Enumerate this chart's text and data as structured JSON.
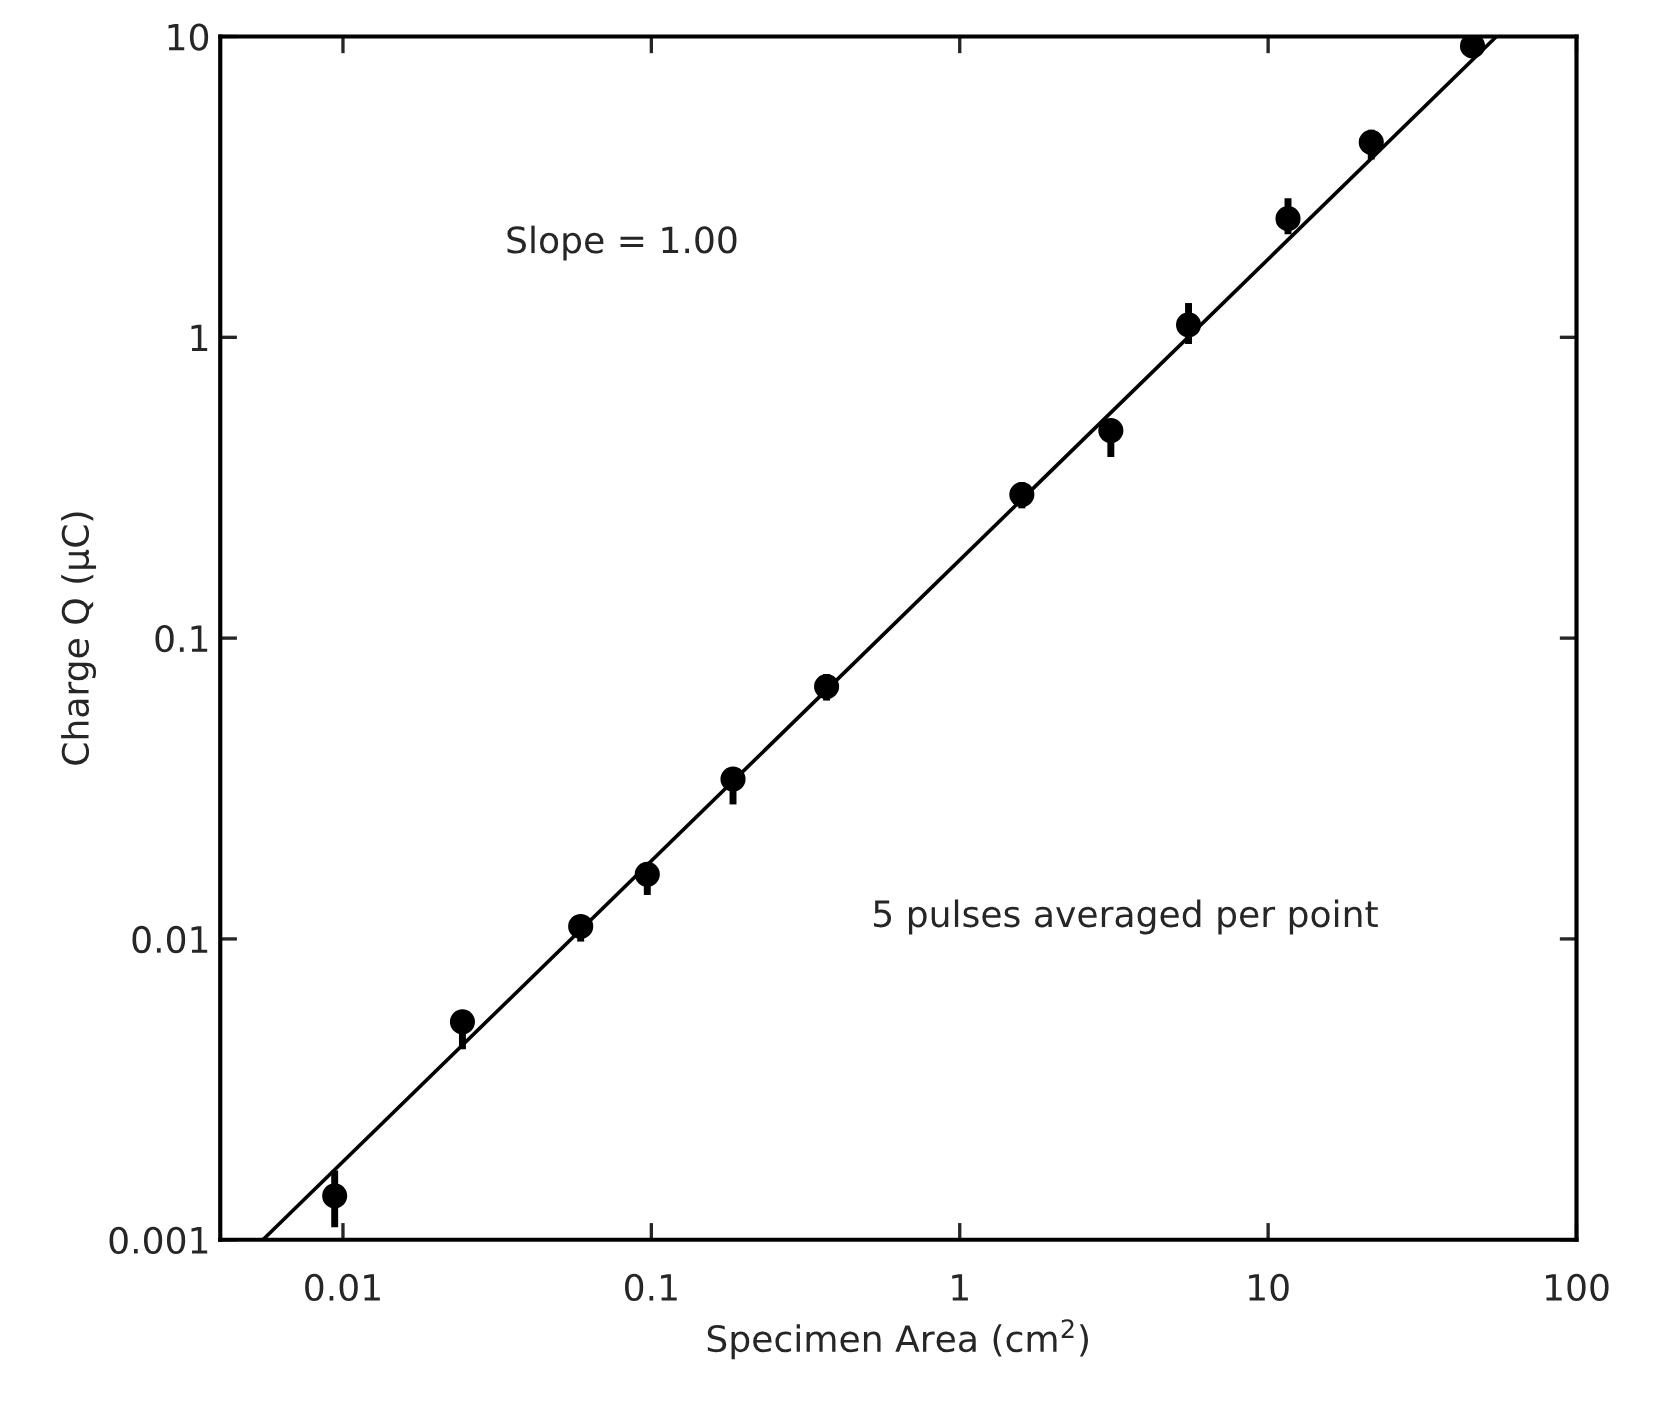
{
  "chart_data": {
    "type": "scatter",
    "xlabel": "Specimen Area (cm$^{2}$)",
    "ylabel": "Charge Q (μC)",
    "log": "xy",
    "grid": false,
    "legend": false,
    "marker": "circle",
    "xlim": [
      0.004,
      100
    ],
    "xticks": [
      0.01,
      0.1,
      1,
      10,
      100
    ],
    "ylim": [
      0.001,
      10
    ],
    "yticks": [
      0.001,
      0.01,
      0.1,
      1,
      10
    ],
    "annotations": [
      "Slope = 1.00",
      "5 pulses averaged per point"
    ],
    "series": [
      {
        "color": "#000000",
        "x": [
          0.0094,
          0.0244,
          0.059,
          0.097,
          0.184,
          0.37,
          1.59,
          3.09,
          5.52,
          11.6,
          21.6,
          46
        ],
        "values": [
          0.0014,
          0.0053,
          0.011,
          0.0164,
          0.034,
          0.069,
          0.3,
          0.49,
          1.1,
          2.48,
          4.45,
          9.3
        ],
        "errors": [
          [
            0.0011,
            0.0017
          ],
          [
            0.0043,
            0.0058
          ],
          [
            0.0098,
            0.012
          ],
          [
            0.014,
            0.018
          ],
          [
            0.028,
            0.037
          ],
          [
            0.062,
            0.076
          ],
          [
            0.27,
            0.33
          ],
          [
            0.4,
            0.53
          ],
          [
            0.95,
            1.3
          ],
          [
            2.2,
            2.9
          ],
          [
            3.9,
            4.9
          ],
          [
            8.5,
            10
          ]
        ]
      },
      {
        "type": "line",
        "color": "#000000",
        "line_style": "solid",
        "marker": "none",
        "x": [
          0.0055,
          55
        ],
        "values": [
          0.001,
          10
        ]
      }
    ]
  }
}
